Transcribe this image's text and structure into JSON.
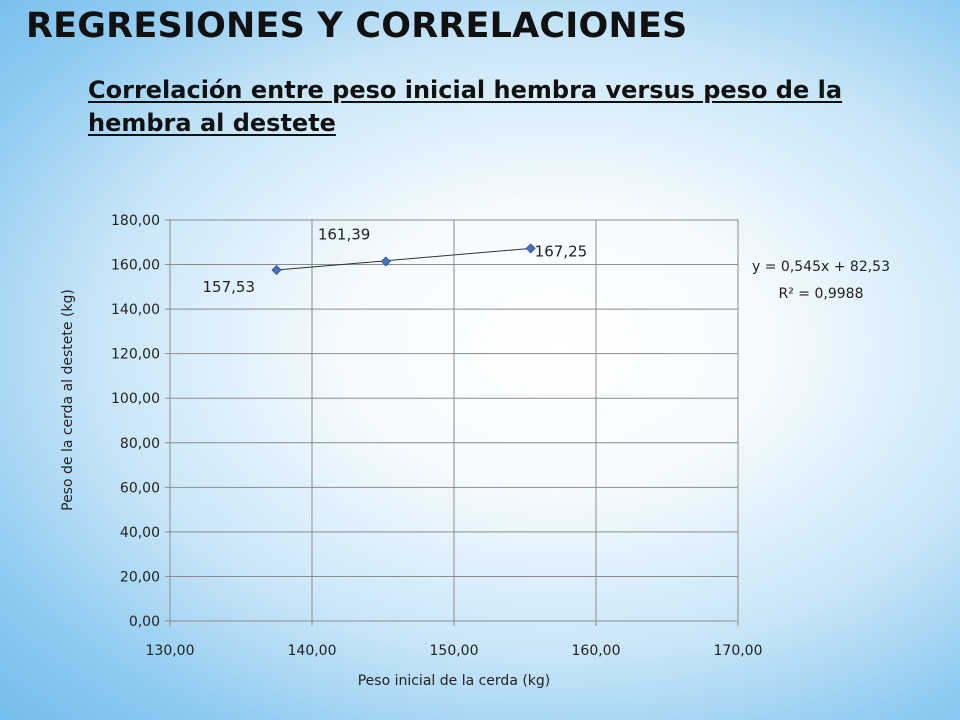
{
  "slide": {
    "title": "REGRESIONES Y CORRELACIONES",
    "subtitle": "Correlación entre peso inicial hembra versus peso de la hembra al destete"
  },
  "chart_data": {
    "type": "scatter",
    "xlabel": "Peso inicial de la cerda (kg)",
    "ylabel": "Peso de la cerda al destete (kg)",
    "xlim": [
      130,
      170
    ],
    "ylim": [
      0,
      180
    ],
    "xticks": [
      "130,00",
      "140,00",
      "150,00",
      "160,00",
      "170,00"
    ],
    "yticks": [
      "0,00",
      "20,00",
      "40,00",
      "60,00",
      "80,00",
      "100,00",
      "120,00",
      "140,00",
      "160,00",
      "180,00"
    ],
    "grid": true,
    "series": [
      {
        "x": [
          137.5,
          145.2,
          155.4
        ],
        "y": [
          157.53,
          161.39,
          167.25
        ],
        "data_labels": [
          "157,53",
          "161,39",
          "167,25"
        ],
        "marker": "diamond",
        "color": "#4a6fb5"
      }
    ],
    "trendline": {
      "type": "linear",
      "equation": "y = 0,545x + 82,53",
      "r_squared": "R² = 0,9988",
      "color": "#333333"
    }
  }
}
